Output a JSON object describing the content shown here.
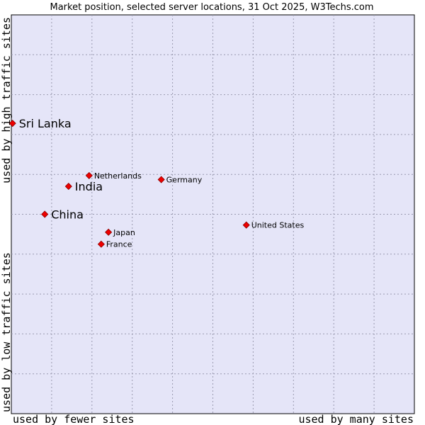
{
  "chart_data": {
    "type": "scatter",
    "title": "Market position, selected server locations, 31 Oct 2025, W3Techs.com",
    "xlabel_left": "used by fewer sites",
    "xlabel_right": "used by many sites",
    "ylabel_bottom": "used by low traffic sites",
    "ylabel_top": "used by high traffic sites",
    "xlim": [
      0,
      100
    ],
    "ylim": [
      0,
      100
    ],
    "grid": true,
    "plot_background": "#e5e5f8",
    "marker_color": "#ee0000",
    "points": [
      {
        "name": "Sri Lanka",
        "x": 0.3,
        "y": 72.8,
        "emphasis": true
      },
      {
        "name": "Netherlands",
        "x": 19.3,
        "y": 59.7,
        "emphasis": false
      },
      {
        "name": "India",
        "x": 14.2,
        "y": 57.0,
        "emphasis": true
      },
      {
        "name": "Germany",
        "x": 37.2,
        "y": 58.7,
        "emphasis": false
      },
      {
        "name": "China",
        "x": 8.3,
        "y": 50.0,
        "emphasis": true
      },
      {
        "name": "United States",
        "x": 58.3,
        "y": 47.3,
        "emphasis": false
      },
      {
        "name": "Japan",
        "x": 24.1,
        "y": 45.5,
        "emphasis": false
      },
      {
        "name": "France",
        "x": 22.3,
        "y": 42.5,
        "emphasis": false
      }
    ]
  }
}
